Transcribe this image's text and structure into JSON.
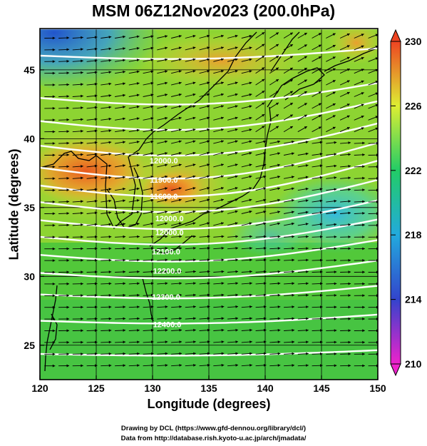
{
  "title": "MSM 06Z12Nov2023 (200.0hPa)",
  "chart_data": {
    "type": "heatmap",
    "title": "MSM 06Z12Nov2023 (200.0hPa)",
    "xlabel": "Longitude (degrees)",
    "ylabel": "Latitude  (degrees)",
    "xlim": [
      120,
      150
    ],
    "ylim": [
      22.5,
      48
    ],
    "x_ticks": [
      "120",
      "125",
      "130",
      "135",
      "140",
      "145",
      "150"
    ],
    "y_ticks": [
      "25",
      "30",
      "35",
      "40",
      "45"
    ],
    "colorbar": {
      "ticks": [
        "210",
        "214",
        "218",
        "222",
        "226",
        "230"
      ],
      "range": [
        210,
        230
      ],
      "colors": [
        "#ee22cc",
        "#3344cc",
        "#22aadd",
        "#22cc66",
        "#ddee33",
        "#ee4422"
      ]
    },
    "contours": [
      {
        "label": "12000.0",
        "lat": 38.2,
        "lon": 131.0
      },
      {
        "label": "11900.0",
        "lat": 36.8,
        "lon": 131.0
      },
      {
        "label": "11600.0",
        "lat": 35.6,
        "lon": 131.0
      },
      {
        "label": "12000.0",
        "lat": 34.0,
        "lon": 131.5
      },
      {
        "label": "12000.0",
        "lat": 33.0,
        "lon": 131.5
      },
      {
        "label": "12100.0",
        "lat": 31.6,
        "lon": 131.2
      },
      {
        "label": "12200.0",
        "lat": 30.2,
        "lon": 131.3
      },
      {
        "label": "12300.0",
        "lat": 28.3,
        "lon": 131.2
      },
      {
        "label": "12400.0",
        "lat": 26.3,
        "lon": 131.3
      }
    ],
    "grid": true,
    "vectors": "wind"
  },
  "credits": {
    "drawing": "Drawing by DCL (https://www.gfd-dennou.org/library/dcl/)",
    "data": "Data from http://database.rish.kyoto-u.ac.jp/arch/jmadata/"
  }
}
